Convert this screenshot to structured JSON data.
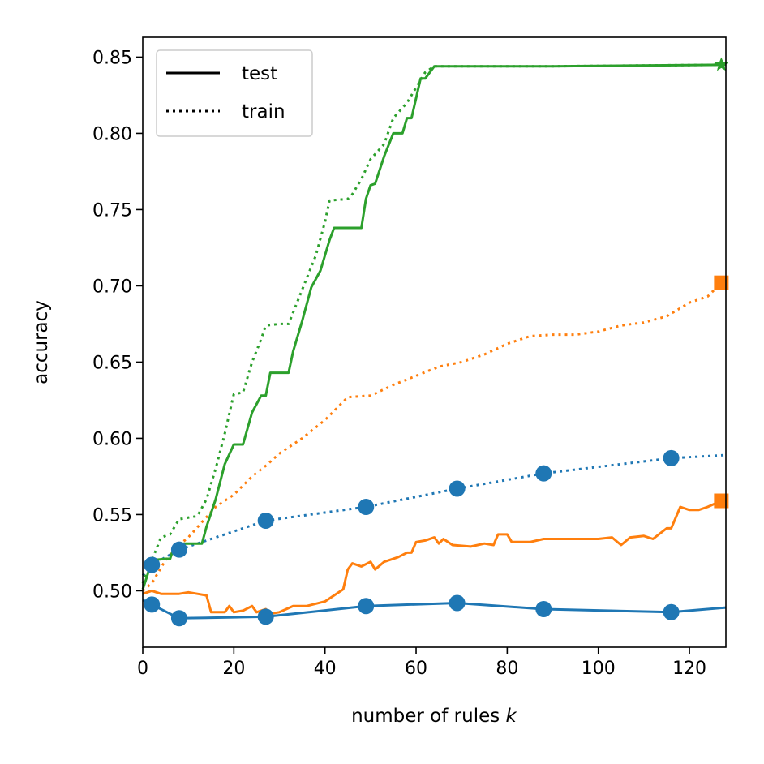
{
  "chart_data": {
    "type": "line",
    "title": "",
    "xlabel": "number of rules",
    "xlabel_var": "k",
    "ylabel": "accuracy",
    "xlim": [
      0,
      128
    ],
    "ylim": [
      0.463,
      0.863
    ],
    "xticks": [
      0,
      20,
      40,
      60,
      80,
      100,
      120
    ],
    "yticks": [
      0.5,
      0.55,
      0.6,
      0.65,
      0.7,
      0.75,
      0.8,
      0.85
    ],
    "ytick_labels": [
      "0.50",
      "0.55",
      "0.60",
      "0.65",
      "0.70",
      "0.75",
      "0.80",
      "0.85"
    ],
    "grid": false,
    "legend": {
      "position": "top-left",
      "entries": [
        {
          "label": "test",
          "style": "solid"
        },
        {
          "label": "train",
          "style": "dotted"
        }
      ]
    },
    "series": [
      {
        "color": "#1f77b4",
        "line_style": "solid",
        "marker": "circle",
        "points": [
          [
            0,
            0.494
          ],
          [
            2,
            0.491
          ],
          [
            8,
            0.482
          ],
          [
            27,
            0.483
          ],
          [
            49,
            0.49
          ],
          [
            69,
            0.492
          ],
          [
            88,
            0.488
          ],
          [
            116,
            0.486
          ],
          [
            128,
            0.489
          ]
        ],
        "markers_at": [
          [
            2,
            0.491
          ],
          [
            8,
            0.482
          ],
          [
            27,
            0.483
          ],
          [
            49,
            0.49
          ],
          [
            69,
            0.492
          ],
          [
            88,
            0.488
          ],
          [
            116,
            0.486
          ]
        ]
      },
      {
        "color": "#1f77b4",
        "line_style": "dotted",
        "marker": "circle",
        "points": [
          [
            0,
            0.51
          ],
          [
            2,
            0.517
          ],
          [
            8,
            0.527
          ],
          [
            27,
            0.546
          ],
          [
            49,
            0.555
          ],
          [
            69,
            0.567
          ],
          [
            88,
            0.577
          ],
          [
            116,
            0.587
          ],
          [
            128,
            0.589
          ]
        ],
        "markers_at": [
          [
            2,
            0.517
          ],
          [
            8,
            0.527
          ],
          [
            27,
            0.546
          ],
          [
            49,
            0.555
          ],
          [
            69,
            0.567
          ],
          [
            88,
            0.577
          ],
          [
            116,
            0.587
          ]
        ]
      },
      {
        "color": "#ff7f0e",
        "line_style": "solid",
        "marker": "square",
        "points": [
          [
            0,
            0.498
          ],
          [
            2,
            0.5
          ],
          [
            4,
            0.498
          ],
          [
            8,
            0.498
          ],
          [
            10,
            0.499
          ],
          [
            12,
            0.498
          ],
          [
            14,
            0.497
          ],
          [
            15,
            0.486
          ],
          [
            18,
            0.486
          ],
          [
            19,
            0.49
          ],
          [
            20,
            0.486
          ],
          [
            22,
            0.487
          ],
          [
            24,
            0.49
          ],
          [
            25,
            0.486
          ],
          [
            27,
            0.488
          ],
          [
            28,
            0.485
          ],
          [
            30,
            0.486
          ],
          [
            33,
            0.49
          ],
          [
            36,
            0.49
          ],
          [
            40,
            0.493
          ],
          [
            42,
            0.497
          ],
          [
            44,
            0.501
          ],
          [
            45,
            0.514
          ],
          [
            46,
            0.518
          ],
          [
            48,
            0.516
          ],
          [
            50,
            0.519
          ],
          [
            51,
            0.514
          ],
          [
            53,
            0.519
          ],
          [
            56,
            0.522
          ],
          [
            58,
            0.525
          ],
          [
            59,
            0.525
          ],
          [
            60,
            0.532
          ],
          [
            62,
            0.533
          ],
          [
            64,
            0.535
          ],
          [
            65,
            0.531
          ],
          [
            66,
            0.534
          ],
          [
            68,
            0.53
          ],
          [
            72,
            0.529
          ],
          [
            75,
            0.531
          ],
          [
            77,
            0.53
          ],
          [
            78,
            0.537
          ],
          [
            80,
            0.537
          ],
          [
            81,
            0.532
          ],
          [
            85,
            0.532
          ],
          [
            88,
            0.534
          ],
          [
            100,
            0.534
          ],
          [
            103,
            0.535
          ],
          [
            105,
            0.53
          ],
          [
            107,
            0.535
          ],
          [
            110,
            0.536
          ],
          [
            112,
            0.534
          ],
          [
            115,
            0.541
          ],
          [
            116,
            0.541
          ],
          [
            118,
            0.555
          ],
          [
            120,
            0.553
          ],
          [
            122,
            0.553
          ],
          [
            124,
            0.555
          ],
          [
            127,
            0.559
          ]
        ],
        "markers_at": [
          [
            127,
            0.559
          ]
        ]
      },
      {
        "color": "#ff7f0e",
        "line_style": "dotted",
        "marker": "square",
        "points": [
          [
            0,
            0.5
          ],
          [
            2,
            0.505
          ],
          [
            5,
            0.52
          ],
          [
            8,
            0.53
          ],
          [
            10,
            0.535
          ],
          [
            13,
            0.545
          ],
          [
            16,
            0.555
          ],
          [
            20,
            0.563
          ],
          [
            24,
            0.575
          ],
          [
            27,
            0.582
          ],
          [
            30,
            0.59
          ],
          [
            35,
            0.6
          ],
          [
            40,
            0.612
          ],
          [
            45,
            0.627
          ],
          [
            50,
            0.628
          ],
          [
            55,
            0.635
          ],
          [
            60,
            0.641
          ],
          [
            65,
            0.647
          ],
          [
            70,
            0.65
          ],
          [
            75,
            0.655
          ],
          [
            80,
            0.662
          ],
          [
            85,
            0.667
          ],
          [
            90,
            0.668
          ],
          [
            95,
            0.668
          ],
          [
            100,
            0.67
          ],
          [
            105,
            0.674
          ],
          [
            110,
            0.676
          ],
          [
            115,
            0.68
          ],
          [
            120,
            0.689
          ],
          [
            124,
            0.693
          ],
          [
            127,
            0.702
          ]
        ],
        "markers_at": [
          [
            127,
            0.702
          ]
        ]
      },
      {
        "color": "#2ca02c",
        "line_style": "solid",
        "marker": "star",
        "points": [
          [
            0,
            0.501
          ],
          [
            1,
            0.51
          ],
          [
            2,
            0.52
          ],
          [
            5,
            0.521
          ],
          [
            6,
            0.521
          ],
          [
            7,
            0.53
          ],
          [
            9,
            0.531
          ],
          [
            13,
            0.531
          ],
          [
            14,
            0.542
          ],
          [
            16,
            0.56
          ],
          [
            18,
            0.583
          ],
          [
            20,
            0.596
          ],
          [
            22,
            0.596
          ],
          [
            24,
            0.617
          ],
          [
            26,
            0.628
          ],
          [
            27,
            0.628
          ],
          [
            28,
            0.643
          ],
          [
            32,
            0.643
          ],
          [
            33,
            0.657
          ],
          [
            35,
            0.677
          ],
          [
            37,
            0.699
          ],
          [
            39,
            0.71
          ],
          [
            41,
            0.73
          ],
          [
            42,
            0.738
          ],
          [
            48,
            0.738
          ],
          [
            49,
            0.757
          ],
          [
            50,
            0.766
          ],
          [
            51,
            0.767
          ],
          [
            53,
            0.785
          ],
          [
            55,
            0.8
          ],
          [
            57,
            0.8
          ],
          [
            58,
            0.81
          ],
          [
            59,
            0.81
          ],
          [
            61,
            0.836
          ],
          [
            62,
            0.836
          ],
          [
            64,
            0.844
          ],
          [
            90,
            0.844
          ],
          [
            128,
            0.845
          ]
        ],
        "markers_at": [
          [
            127,
            0.845
          ]
        ]
      },
      {
        "color": "#2ca02c",
        "line_style": "dotted",
        "marker": "star",
        "points": [
          [
            0,
            0.505
          ],
          [
            2,
            0.52
          ],
          [
            4,
            0.535
          ],
          [
            6,
            0.537
          ],
          [
            8,
            0.547
          ],
          [
            12,
            0.549
          ],
          [
            14,
            0.56
          ],
          [
            16,
            0.58
          ],
          [
            18,
            0.603
          ],
          [
            20,
            0.629
          ],
          [
            22,
            0.63
          ],
          [
            24,
            0.65
          ],
          [
            26,
            0.665
          ],
          [
            27,
            0.674
          ],
          [
            30,
            0.675
          ],
          [
            32,
            0.675
          ],
          [
            34,
            0.69
          ],
          [
            36,
            0.705
          ],
          [
            38,
            0.72
          ],
          [
            40,
            0.742
          ],
          [
            41,
            0.756
          ],
          [
            45,
            0.757
          ],
          [
            46,
            0.76
          ],
          [
            48,
            0.77
          ],
          [
            50,
            0.783
          ],
          [
            53,
            0.793
          ],
          [
            55,
            0.81
          ],
          [
            58,
            0.82
          ],
          [
            62,
            0.84
          ],
          [
            64,
            0.844
          ],
          [
            90,
            0.844
          ],
          [
            128,
            0.845
          ]
        ],
        "markers_at": [
          [
            127,
            0.845
          ]
        ]
      }
    ]
  }
}
